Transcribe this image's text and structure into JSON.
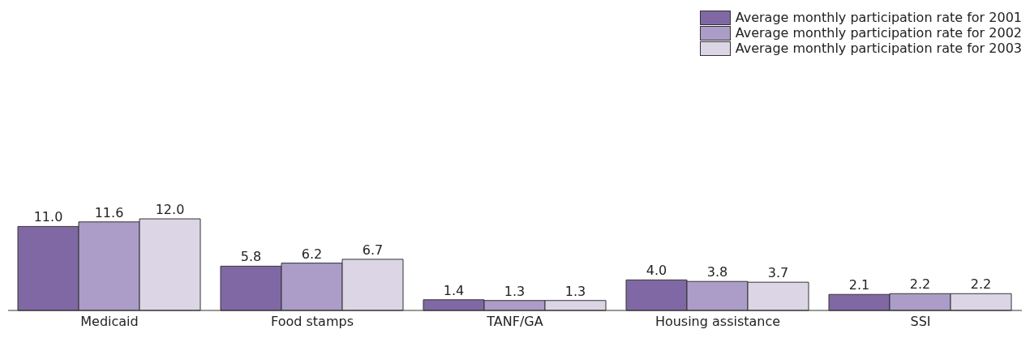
{
  "chart_data": {
    "type": "bar",
    "categories": [
      "Medicaid",
      "Food stamps",
      "TANF/GA",
      "Housing assistance",
      "SSI"
    ],
    "series": [
      {
        "name": "Average monthly participation rate for 2001",
        "color": "#8068a4",
        "values": [
          11.0,
          5.8,
          1.4,
          4.0,
          2.1
        ],
        "value_labels": [
          "11.0",
          "5.8",
          "1.4",
          "4.0",
          "2.1"
        ]
      },
      {
        "name": "Average monthly participation rate for 2002",
        "color": "#ab9dc8",
        "values": [
          11.6,
          6.2,
          1.3,
          3.8,
          2.2
        ],
        "value_labels": [
          "11.6",
          "6.2",
          "1.3",
          "3.8",
          "2.2"
        ]
      },
      {
        "name": "Average monthly participation rate for 2003",
        "color": "#dcd5e6",
        "values": [
          12.0,
          6.7,
          1.3,
          3.7,
          2.2
        ],
        "value_labels": [
          "12.0",
          "6.7",
          "1.3",
          "3.7",
          "2.2"
        ]
      }
    ],
    "legend": "top right"
  }
}
